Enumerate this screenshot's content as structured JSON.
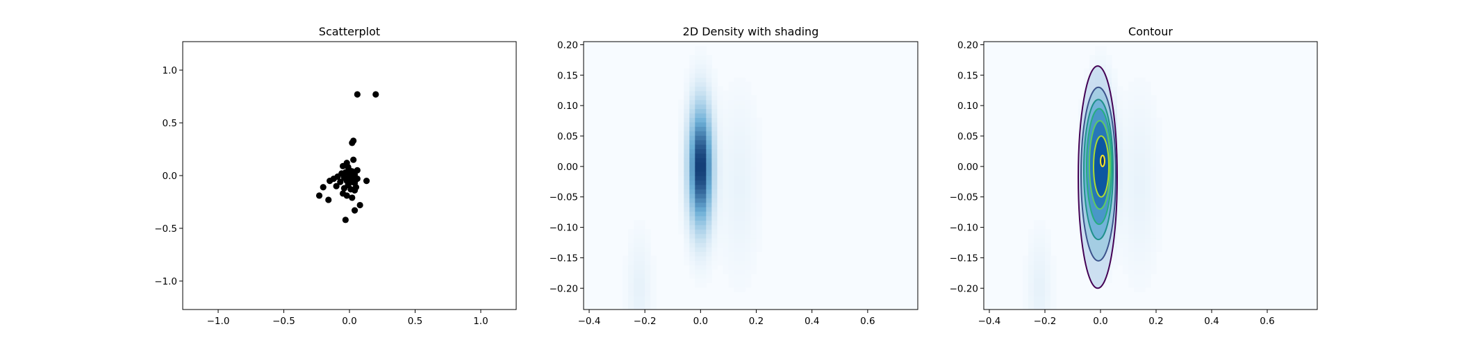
{
  "colors": {
    "point": "#000000",
    "cmap_low": "#f7fbff",
    "cmap_mid": "#6baed6",
    "cmap_high": "#08306b",
    "contour_levels": [
      "#440154",
      "#3b528b",
      "#21918c",
      "#27ad81",
      "#5ec962",
      "#addc30",
      "#fde725"
    ]
  },
  "chart_data": [
    {
      "type": "scatter",
      "title": "Scatterplot",
      "xlabel": "",
      "ylabel": "",
      "xlim": [
        -1.27,
        1.27
      ],
      "ylim": [
        -1.27,
        1.27
      ],
      "xticks": [
        "−1.0",
        "−0.5",
        "0.0",
        "0.5",
        "1.0"
      ],
      "xtick_values": [
        -1.0,
        -0.5,
        0.0,
        0.5,
        1.0
      ],
      "yticks": [
        "−1.0",
        "−0.5",
        "0.0",
        "0.5",
        "1.0"
      ],
      "ytick_values": [
        -1.0,
        -0.5,
        0.0,
        0.5,
        1.0
      ],
      "points": [
        [
          0.06,
          0.77
        ],
        [
          0.2,
          0.77
        ],
        [
          0.03,
          0.33
        ],
        [
          0.02,
          0.31
        ],
        [
          -0.02,
          0.12
        ],
        [
          0.03,
          0.15
        ],
        [
          -0.05,
          0.09
        ],
        [
          -0.01,
          0.08
        ],
        [
          0.0,
          0.05
        ],
        [
          0.02,
          0.04
        ],
        [
          -0.03,
          0.03
        ],
        [
          0.06,
          0.05
        ],
        [
          -0.06,
          0.02
        ],
        [
          0.01,
          0.02
        ],
        [
          0.04,
          0.01
        ],
        [
          -0.09,
          -0.01
        ],
        [
          -0.12,
          -0.03
        ],
        [
          -0.04,
          -0.02
        ],
        [
          0.0,
          -0.01
        ],
        [
          0.03,
          -0.02
        ],
        [
          0.06,
          -0.03
        ],
        [
          0.13,
          -0.05
        ],
        [
          -0.15,
          -0.05
        ],
        [
          -0.07,
          -0.06
        ],
        [
          -0.02,
          -0.05
        ],
        [
          0.02,
          -0.06
        ],
        [
          0.04,
          -0.07
        ],
        [
          -0.1,
          -0.1
        ],
        [
          -0.01,
          -0.09
        ],
        [
          0.05,
          -0.11
        ],
        [
          -0.04,
          -0.12
        ],
        [
          0.01,
          -0.13
        ],
        [
          0.04,
          -0.14
        ],
        [
          -0.2,
          -0.11
        ],
        [
          -0.05,
          -0.17
        ],
        [
          -0.02,
          -0.19
        ],
        [
          0.02,
          -0.21
        ],
        [
          -0.23,
          -0.19
        ],
        [
          -0.16,
          -0.23
        ],
        [
          0.08,
          -0.28
        ],
        [
          0.04,
          -0.33
        ],
        [
          -0.03,
          -0.42
        ]
      ]
    },
    {
      "type": "heatmap",
      "title": "2D Density with shading",
      "xlabel": "",
      "ylabel": "",
      "xlim": [
        -0.42,
        0.78
      ],
      "ylim": [
        -0.235,
        0.205
      ],
      "xticks": [
        "−0.4",
        "−0.2",
        "0.0",
        "0.2",
        "0.4",
        "0.6"
      ],
      "xtick_values": [
        -0.4,
        -0.2,
        0.0,
        0.2,
        0.4,
        0.6
      ],
      "yticks": [
        "0.20",
        "0.15",
        "0.10",
        "0.05",
        "0.00",
        "−0.05",
        "−0.10",
        "−0.15",
        "−0.20"
      ],
      "ytick_values": [
        0.2,
        0.15,
        0.1,
        0.05,
        0.0,
        -0.05,
        -0.1,
        -0.15,
        -0.2
      ],
      "density_center": [
        0.0,
        0.0
      ],
      "density_spread": [
        0.028,
        0.065
      ],
      "colormap": "Blues"
    },
    {
      "type": "heatmap",
      "title": "Contour",
      "xlabel": "",
      "ylabel": "",
      "xlim": [
        -0.42,
        0.78
      ],
      "ylim": [
        -0.235,
        0.205
      ],
      "xticks": [
        "−0.4",
        "−0.2",
        "0.0",
        "0.2",
        "0.4",
        "0.6"
      ],
      "xtick_values": [
        -0.4,
        -0.2,
        0.0,
        0.2,
        0.4,
        0.6
      ],
      "yticks": [
        "0.20",
        "0.15",
        "0.10",
        "0.05",
        "0.00",
        "−0.05",
        "−0.10",
        "−0.15",
        "−0.20"
      ],
      "ytick_values": [
        0.2,
        0.15,
        0.1,
        0.05,
        0.0,
        -0.05,
        -0.1,
        -0.15,
        -0.2
      ],
      "density_center": [
        0.0,
        0.0
      ],
      "density_spread": [
        0.028,
        0.065
      ],
      "colormap": "Blues",
      "contour_levels": [
        0.08,
        0.2,
        0.32,
        0.44,
        0.56,
        0.7,
        0.86
      ],
      "contour_extent": [
        [
          -0.08,
          0.06,
          -0.2,
          0.165
        ],
        [
          -0.07,
          0.055,
          -0.155,
          0.13
        ],
        [
          -0.06,
          0.045,
          -0.12,
          0.11
        ],
        [
          -0.05,
          0.04,
          -0.095,
          0.095
        ],
        [
          -0.04,
          0.035,
          -0.07,
          0.075
        ],
        [
          -0.025,
          0.03,
          -0.05,
          0.05
        ],
        [
          0.0,
          0.015,
          0.0,
          0.018
        ]
      ]
    }
  ]
}
